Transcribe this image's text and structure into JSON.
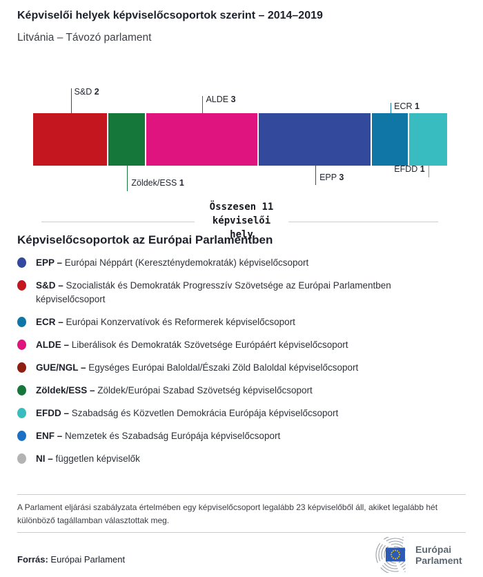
{
  "header": {
    "title": "Képviselői helyek képviselőcsoportok szerint – 2014–2019",
    "subtitle": "Litvánia – Távozó parlament"
  },
  "chart_data": {
    "type": "bar",
    "variant": "horizontal-stacked-seat-bar",
    "title": "Képviselői helyek képviselőcsoportok szerint – 2014–2019",
    "subtitle": "Litvánia – Távozó parlament",
    "total_seats": 11,
    "total_label_lines": [
      "Összesen 11",
      "képviselői",
      "hely"
    ],
    "segments": [
      {
        "group": "S&D",
        "seats": 2,
        "color": "#c4161e",
        "label_side": "top"
      },
      {
        "group": "Zöldek/ESS",
        "seats": 1,
        "color": "#15773a",
        "label_side": "bottom"
      },
      {
        "group": "ALDE",
        "seats": 3,
        "color": "#e0147e",
        "label_side": "top"
      },
      {
        "group": "EPP",
        "seats": 3,
        "color": "#33499b",
        "label_side": "bottom"
      },
      {
        "group": "ECR",
        "seats": 1,
        "color": "#0f76a6",
        "label_side": "top"
      },
      {
        "group": "EFDD",
        "seats": 1,
        "color": "#38bcbf",
        "label_side": "bottom"
      }
    ]
  },
  "legend": {
    "heading": "Képviselőcsoportok az Európai Parlamentben",
    "items": [
      {
        "code": "EPP –",
        "description": "Európai Néppárt (Kereszténydemokraták) képviselőcsoport",
        "color": "#33499b"
      },
      {
        "code": "S&D –",
        "description": "Szocialisták és Demokraták Progresszív Szövetsége az Európai Parlamentben képviselőcsoport",
        "color": "#c4161e"
      },
      {
        "code": "ECR –",
        "description": "Európai Konzervatívok és Reformerek képviselőcsoport",
        "color": "#0f76a6"
      },
      {
        "code": "ALDE –",
        "description": "Liberálisok és Demokraták Szövetsége Európáért képviselőcsoport",
        "color": "#e0147e"
      },
      {
        "code": "GUE/NGL –",
        "description": "Egységes Európai Baloldal/Északi Zöld Baloldal képviselőcsoport",
        "color": "#8e1f10"
      },
      {
        "code": "Zöldek/ESS –",
        "description": "Zöldek/Európai Szabad Szövetség képviselőcsoport",
        "color": "#15773a"
      },
      {
        "code": "EFDD –",
        "description": "Szabadság és Közvetlen Demokrácia Európája képviselőcsoport",
        "color": "#38bcbf"
      },
      {
        "code": "ENF –",
        "description": "Nemzetek és Szabadság Európája képviselőcsoport",
        "color": "#1b70c5"
      },
      {
        "code": "NI –",
        "description": "független képviselők",
        "color": "#b3b3b3"
      }
    ]
  },
  "footer": {
    "note": "A Parlament eljárási szabályzata értelmében egy képviselőcsoport legalább 23 képviselőből áll, akiket legalább hét különböző tagállamban választottak meg.",
    "source_label": "Forrás:",
    "source_value": "Európai Parlament",
    "logo_lines": [
      "Európai",
      "Parlament"
    ]
  }
}
